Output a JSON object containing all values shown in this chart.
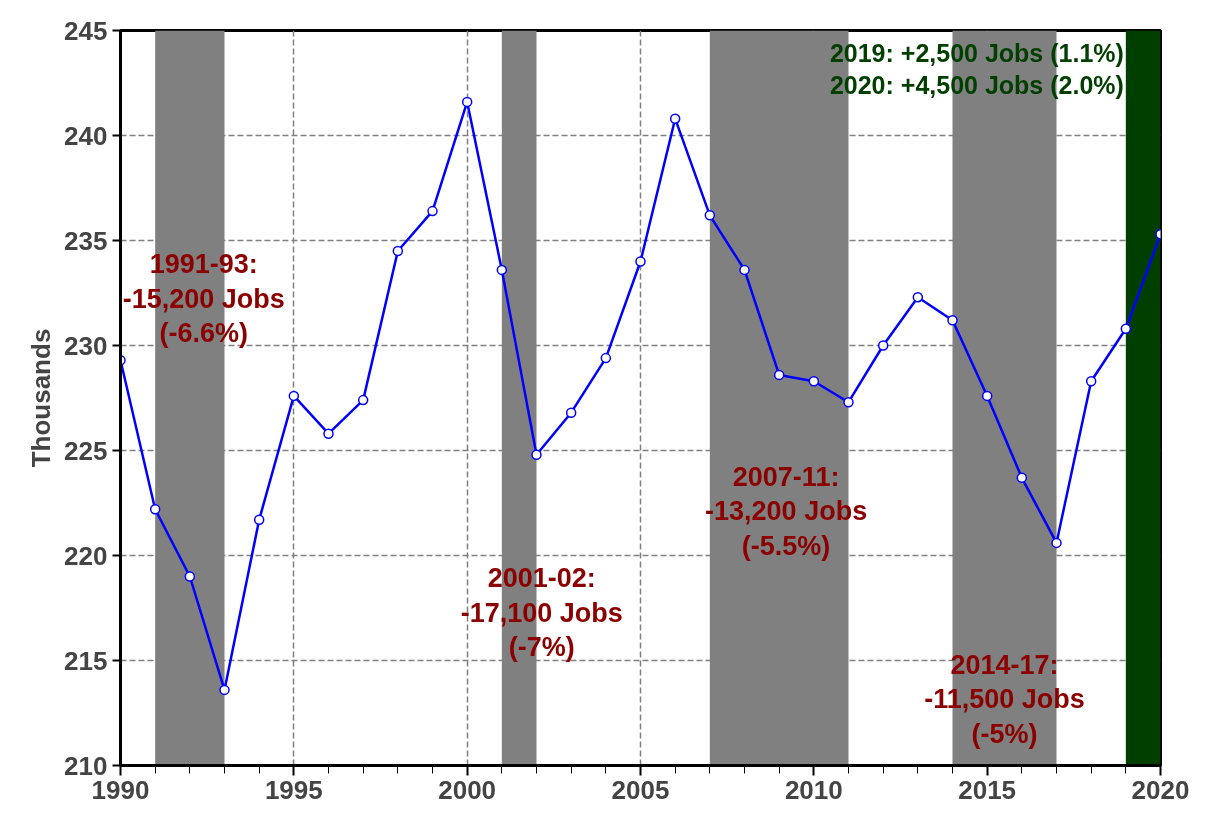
{
  "chart_data": {
    "type": "line",
    "ylabel": "Thousands",
    "x": [
      1990,
      1991,
      1992,
      1993,
      1994,
      1995,
      1996,
      1997,
      1998,
      1999,
      2000,
      2001,
      2002,
      2003,
      2004,
      2005,
      2006,
      2007,
      2008,
      2009,
      2010,
      2011,
      2012,
      2013,
      2014,
      2015,
      2016,
      2017,
      2018,
      2019,
      2020
    ],
    "series": [
      {
        "color": "#0000ff",
        "values": [
          229.3,
          222.2,
          219.0,
          213.6,
          221.7,
          227.6,
          225.8,
          227.4,
          234.5,
          236.4,
          241.6,
          233.6,
          224.8,
          226.8,
          229.4,
          234.0,
          240.8,
          236.2,
          233.6,
          228.6,
          228.3,
          227.3,
          230.0,
          232.3,
          231.2,
          227.6,
          223.7,
          220.6,
          228.3,
          230.8,
          235.3
        ]
      }
    ],
    "xlim": [
      1990,
      2020
    ],
    "xticks": [
      1990,
      1995,
      2000,
      2005,
      2010,
      2015,
      2020
    ],
    "ylim": [
      210,
      245
    ],
    "yticks": [
      210,
      215,
      220,
      225,
      230,
      235,
      240,
      245
    ],
    "grid": true,
    "marker": "circle",
    "line_style": "solid",
    "bands": [
      {
        "axis": "x",
        "from": 1991,
        "to": 1993,
        "color": "#808080"
      },
      {
        "axis": "x",
        "from": 2001,
        "to": 2002,
        "color": "#808080"
      },
      {
        "axis": "x",
        "from": 2007,
        "to": 2011,
        "color": "#808080"
      },
      {
        "axis": "x",
        "from": 2014,
        "to": 2017,
        "color": "#808080"
      },
      {
        "axis": "x",
        "from": 2019,
        "to": 2020,
        "color": "#003f00",
        "label": "2019: +2,500 Jobs (1.1%)\n2020: +4,500 Jobs (2.0%)"
      }
    ],
    "annotations": [
      "1991-93:\n-15,200 Jobs\n(-6.6%)",
      "2001-02:\n-17,100 Jobs\n(-7%)",
      "2007-11:\n-13,200 Jobs\n(-5.5%)",
      "2014-17:\n-11,500 Jobs\n(-5%)"
    ]
  }
}
